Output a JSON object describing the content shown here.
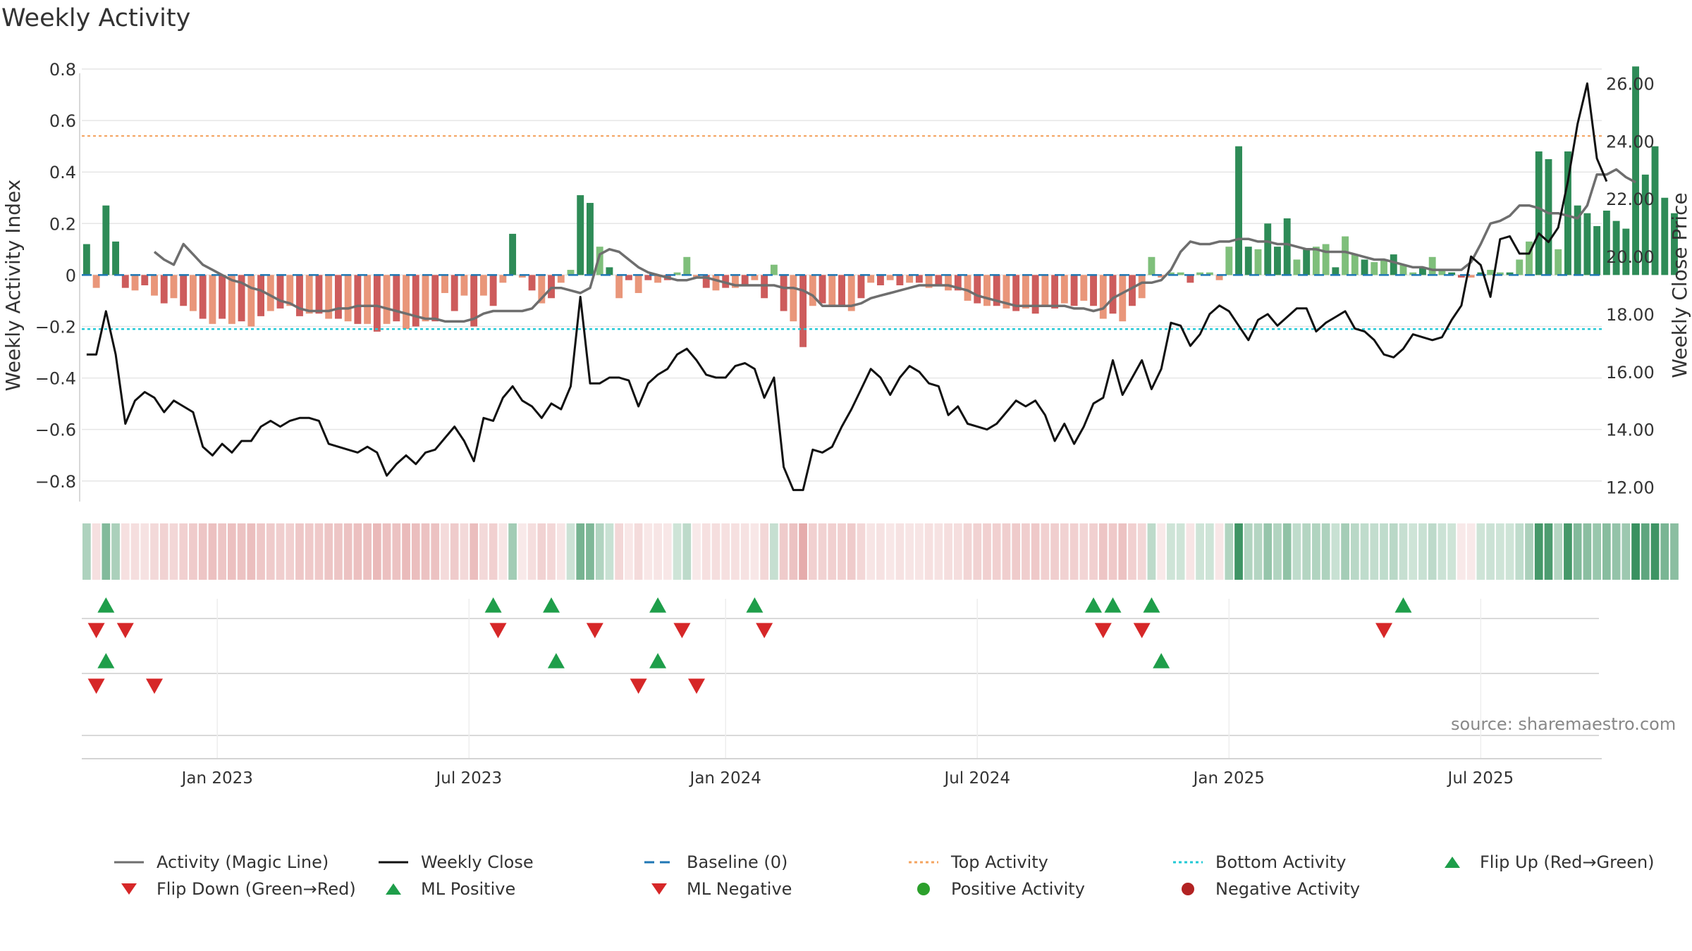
{
  "title": "Weekly Activity",
  "source": "source: sharemaestro.com",
  "colors": {
    "grid": "#e6e6e6",
    "axis": "#cccccc",
    "green_dark": "#2e8b57",
    "green_light": "#7fbf7b",
    "red_dark": "#cd5c5c",
    "red_light": "#e9967a",
    "magic": "#6e6e6e",
    "close": "#111111",
    "baseline": "#1f77b4",
    "top": "#f4a460",
    "bottom": "#20c9d6",
    "marker_up": "#1e9e4a",
    "marker_down": "#d62728",
    "pos_dot": "#2ca02c",
    "neg_dot": "#b22222"
  },
  "chart_data": {
    "type": "bar+line",
    "title": "Weekly Activity",
    "ylabel_left": "Weekly Activity Index",
    "ylabel_right": "Weekly Close Price",
    "ylim_left": [
      -0.88,
      0.8
    ],
    "ylim_right": [
      11.5,
      26.5
    ],
    "yticks_left": [
      "0.8",
      "0.6",
      "0.4",
      "0.2",
      "0",
      "−0.2",
      "−0.4",
      "−0.6",
      "−0.8"
    ],
    "ytick_values_left": [
      0.8,
      0.6,
      0.4,
      0.2,
      0,
      -0.2,
      -0.4,
      -0.6,
      -0.8
    ],
    "yticks_right": [
      "26.00",
      "24.00",
      "22.00",
      "20.00",
      "18.00",
      "16.00",
      "14.00",
      "12.00"
    ],
    "ytick_values_right": [
      26,
      24,
      22,
      20,
      18,
      16,
      14,
      12
    ],
    "xticks": [
      "Jan 2023",
      "Jul 2023",
      "Jan 2024",
      "Jul 2024",
      "Jan 2025",
      "Jul 2025"
    ],
    "xtick_weeks": [
      14,
      40,
      66.5,
      92.5,
      118.5,
      144.5
    ],
    "top_activity": 0.54,
    "bottom_activity": -0.21,
    "baseline": 0,
    "weeks": 157,
    "activity": [
      0.12,
      -0.05,
      0.27,
      0.13,
      -0.05,
      -0.06,
      -0.04,
      -0.08,
      -0.11,
      -0.09,
      -0.12,
      -0.14,
      -0.17,
      -0.19,
      -0.17,
      -0.19,
      -0.18,
      -0.2,
      -0.16,
      -0.14,
      -0.13,
      -0.12,
      -0.16,
      -0.15,
      -0.15,
      -0.17,
      -0.17,
      -0.18,
      -0.19,
      -0.19,
      -0.22,
      -0.19,
      -0.18,
      -0.21,
      -0.2,
      -0.18,
      -0.18,
      -0.07,
      -0.14,
      -0.08,
      -0.2,
      -0.08,
      -0.12,
      -0.03,
      0.16,
      -0.01,
      -0.06,
      -0.11,
      -0.09,
      -0.03,
      0.02,
      0.31,
      0.28,
      0.11,
      0.03,
      -0.09,
      -0.02,
      -0.07,
      -0.02,
      -0.03,
      -0.02,
      0.01,
      0.07,
      -0.01,
      -0.05,
      -0.06,
      -0.05,
      -0.05,
      -0.04,
      -0.02,
      -0.09,
      0.04,
      -0.14,
      -0.18,
      -0.28,
      -0.12,
      -0.11,
      -0.12,
      -0.12,
      -0.14,
      -0.09,
      -0.03,
      -0.04,
      -0.02,
      -0.04,
      -0.03,
      -0.03,
      -0.05,
      -0.04,
      -0.06,
      -0.06,
      -0.1,
      -0.11,
      -0.12,
      -0.12,
      -0.13,
      -0.14,
      -0.13,
      -0.15,
      -0.12,
      -0.13,
      -0.11,
      -0.12,
      -0.1,
      -0.12,
      -0.17,
      -0.15,
      -0.18,
      -0.12,
      -0.09,
      0.07,
      -0.01,
      0.01,
      0.01,
      -0.03,
      0.01,
      0.01,
      -0.02,
      0.11,
      0.5,
      0.11,
      0.1,
      0.2,
      0.11,
      0.22,
      0.06,
      0.1,
      0.11,
      0.12,
      0.03,
      0.15,
      0.08,
      0.06,
      0.05,
      0.06,
      0.08,
      0.04,
      0.01,
      0.03,
      0.07,
      0.02,
      0.01,
      -0.01,
      -0.01,
      0.01,
      0.02,
      0.01,
      0.01,
      0.06,
      0.13,
      0.48,
      0.45,
      0.1,
      0.48,
      0.27,
      0.24,
      0.19,
      0.25,
      0.21,
      0.18,
      0.81,
      0.39,
      0.5,
      0.3,
      0.24
    ],
    "magic_line": [
      0.09,
      0.06,
      0.04,
      0.12,
      0.08,
      0.04,
      0.02,
      0.0,
      -0.02,
      -0.03,
      -0.05,
      -0.06,
      -0.08,
      -0.1,
      -0.11,
      -0.13,
      -0.14,
      -0.14,
      -0.14,
      -0.13,
      -0.13,
      -0.12,
      -0.12,
      -0.12,
      -0.13,
      -0.14,
      -0.15,
      -0.16,
      -0.17,
      -0.17,
      -0.18,
      -0.18,
      -0.18,
      -0.17,
      -0.15,
      -0.14,
      -0.14,
      -0.14,
      -0.14,
      -0.13,
      -0.09,
      -0.05,
      -0.05,
      -0.06,
      -0.07,
      -0.05,
      0.08,
      0.1,
      0.09,
      0.06,
      0.03,
      0.01,
      0.0,
      -0.01,
      -0.02,
      -0.02,
      -0.01,
      -0.01,
      -0.02,
      -0.03,
      -0.04,
      -0.04,
      -0.04,
      -0.04,
      -0.04,
      -0.05,
      -0.05,
      -0.06,
      -0.08,
      -0.12,
      -0.12,
      -0.12,
      -0.12,
      -0.11,
      -0.09,
      -0.08,
      -0.07,
      -0.06,
      -0.05,
      -0.04,
      -0.04,
      -0.04,
      -0.04,
      -0.05,
      -0.06,
      -0.08,
      -0.09,
      -0.1,
      -0.11,
      -0.12,
      -0.12,
      -0.12,
      -0.12,
      -0.12,
      -0.12,
      -0.13,
      -0.13,
      -0.14,
      -0.13,
      -0.09,
      -0.07,
      -0.05,
      -0.03,
      -0.03,
      -0.02,
      0.02,
      0.09,
      0.13,
      0.12,
      0.12,
      0.13,
      0.13,
      0.14,
      0.14,
      0.13,
      0.13,
      0.12,
      0.12,
      0.11,
      0.1,
      0.1,
      0.09,
      0.09,
      0.09,
      0.08,
      0.07,
      0.06,
      0.06,
      0.05,
      0.04,
      0.03,
      0.03,
      0.02,
      0.02,
      0.02,
      0.02,
      0.05,
      0.12,
      0.2,
      0.21,
      0.23,
      0.27,
      0.27,
      0.26,
      0.24,
      0.24,
      0.23,
      0.22,
      0.27,
      0.39,
      0.39,
      0.41,
      0.38,
      0.36
    ],
    "magic_line_start_week": 7,
    "weekly_close": [
      16.6,
      16.6,
      18.1,
      16.6,
      14.2,
      15,
      15.3,
      15.1,
      14.6,
      15,
      14.8,
      14.6,
      13.4,
      13.1,
      13.5,
      13.2,
      13.6,
      13.6,
      14.1,
      14.3,
      14.1,
      14.3,
      14.4,
      14.4,
      14.3,
      13.5,
      13.4,
      13.3,
      13.2,
      13.4,
      13.2,
      12.4,
      12.8,
      13.1,
      12.8,
      13.2,
      13.3,
      13.7,
      14.1,
      13.6,
      12.9,
      14.4,
      14.3,
      15.1,
      15.5,
      15,
      14.8,
      14.4,
      14.9,
      14.7,
      15.5,
      18.6,
      15.6,
      15.6,
      15.8,
      15.8,
      15.7,
      14.8,
      15.6,
      15.9,
      16.1,
      16.6,
      16.8,
      16.4,
      15.9,
      15.8,
      15.8,
      16.2,
      16.3,
      16.1,
      15.1,
      15.8,
      12.7,
      11.9,
      11.9,
      13.3,
      13.2,
      13.4,
      14.1,
      14.7,
      15.4,
      16.1,
      15.8,
      15.2,
      15.8,
      16.2,
      16,
      15.6,
      15.5,
      14.5,
      14.8,
      14.2,
      14.1,
      14,
      14.2,
      14.6,
      15,
      14.8,
      15,
      14.5,
      13.6,
      14.2,
      13.5,
      14.1,
      14.9,
      15.1,
      16.4,
      15.2,
      15.8,
      16.4,
      15.4,
      16.1,
      17.7,
      17.6,
      16.9,
      17.3,
      18,
      18.3,
      18.1,
      17.6,
      17.1,
      17.8,
      18,
      17.6,
      17.9,
      18.2,
      18.2,
      17.4,
      17.7,
      17.9,
      18.1,
      17.5,
      17.4,
      17.1,
      16.6,
      16.5,
      16.8,
      17.3,
      17.2,
      17.1,
      17.2,
      17.8,
      18.3,
      20,
      19.7,
      18.6,
      20.6,
      20.7,
      20.1,
      20.1,
      20.8,
      20.5,
      21,
      22.6,
      24.6,
      26,
      23.4,
      22.6
    ],
    "flip_up_weeks": [
      2.5,
      42.5,
      48.5,
      59.5,
      69.5,
      104.5,
      106.5,
      110.5,
      136.5
    ],
    "flip_down_weeks": [
      1.5,
      4.5,
      43,
      53,
      62,
      70.5,
      105.5,
      109.5,
      134.5
    ],
    "ml_positive_weeks": [
      2.5,
      49,
      59.5,
      111.5
    ],
    "ml_negative_weeks": [
      1.5,
      7.5,
      57.5,
      63.5
    ]
  },
  "legend": [
    {
      "key": "magic",
      "label": "Activity (Magic Line)"
    },
    {
      "key": "close",
      "label": "Weekly Close"
    },
    {
      "key": "baseline",
      "label": "Baseline (0)"
    },
    {
      "key": "top",
      "label": "Top Activity"
    },
    {
      "key": "bottom",
      "label": "Bottom Activity"
    },
    {
      "key": "flipup",
      "label": "Flip Up (Red→Green)"
    },
    {
      "key": "flipdown",
      "label": "Flip Down (Green→Red)"
    },
    {
      "key": "mlpos",
      "label": "ML Positive"
    },
    {
      "key": "mlneg",
      "label": "ML Negative"
    },
    {
      "key": "posdot",
      "label": "Positive Activity"
    },
    {
      "key": "negdot",
      "label": "Negative Activity"
    }
  ]
}
